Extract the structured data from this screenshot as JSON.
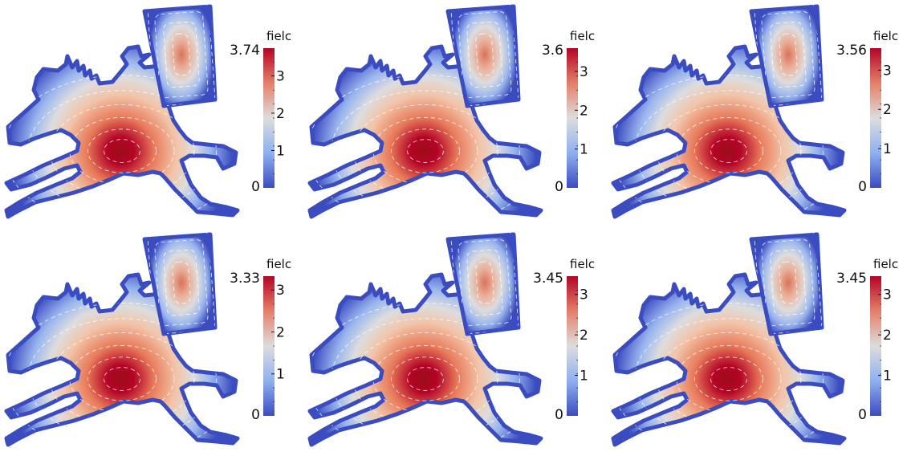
{
  "figure": {
    "panels": [
      {
        "id": "p1",
        "colorbar": {
          "title": "fielc",
          "max_label": "3.74",
          "min_label": "0",
          "ticks": [
            "3",
            "2",
            "1"
          ],
          "max_value": 3.74
        }
      },
      {
        "id": "p2",
        "colorbar": {
          "title": "fielc",
          "max_label": "3.6",
          "min_label": "0",
          "ticks": [
            "3",
            "2",
            "1"
          ],
          "max_value": 3.6
        }
      },
      {
        "id": "p3",
        "colorbar": {
          "title": "fielc",
          "max_label": "3.56",
          "min_label": "0",
          "ticks": [
            "3",
            "2",
            "1"
          ],
          "max_value": 3.56
        }
      },
      {
        "id": "p4",
        "colorbar": {
          "title": "fielc",
          "max_label": "3.33",
          "min_label": "0",
          "ticks": [
            "3",
            "2",
            "1"
          ],
          "max_value": 3.33
        }
      },
      {
        "id": "p5",
        "colorbar": {
          "title": "fielc",
          "max_label": "3.45",
          "min_label": "0",
          "ticks": [
            "3",
            "2",
            "1"
          ],
          "max_value": 3.45
        }
      },
      {
        "id": "p6",
        "colorbar": {
          "title": "fielc",
          "max_label": "3.45",
          "min_label": "0",
          "ticks": [
            "3",
            "2",
            "1"
          ],
          "max_value": 3.45
        }
      }
    ],
    "colormap": {
      "low": "#3b4cc0",
      "mid": "#dddddd",
      "high": "#b40426"
    },
    "contour_color": "#ffffff"
  }
}
